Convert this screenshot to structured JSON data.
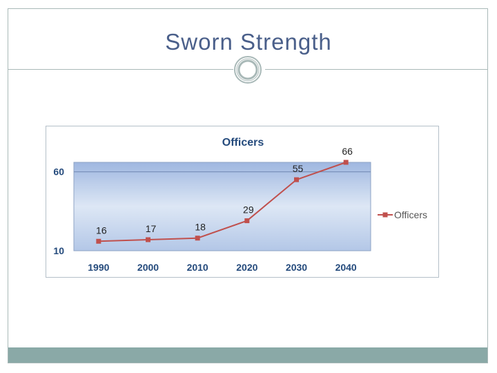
{
  "slide": {
    "title": "Sworn Strength"
  },
  "colors": {
    "title": "#4a5f8a",
    "accent": "#c0504d",
    "footer": "#8aa9a7",
    "axis_text": "#244a7c"
  },
  "chart_data": {
    "type": "line",
    "title": "Officers",
    "categories": [
      "1990",
      "2000",
      "2010",
      "2020",
      "2030",
      "2040"
    ],
    "series": [
      {
        "name": "Officers",
        "values": [
          16,
          17,
          18,
          29,
          55,
          66
        ]
      }
    ],
    "ylim": [
      10,
      66
    ],
    "yticks": [
      "10",
      "60"
    ],
    "gridlines": [
      60
    ],
    "xlabel": "",
    "ylabel": "",
    "legend": "right",
    "data_labels": true
  }
}
